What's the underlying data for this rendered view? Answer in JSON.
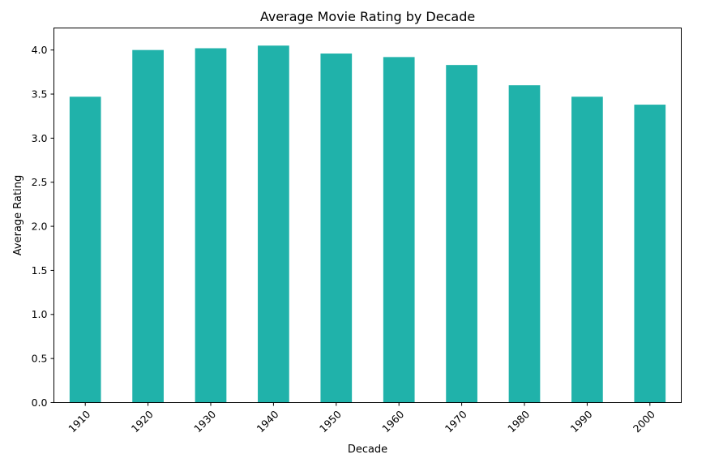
{
  "chart_data": {
    "type": "bar",
    "title": "Average Movie Rating by Decade",
    "xlabel": "Decade",
    "ylabel": "Average Rating",
    "categories": [
      "1910",
      "1920",
      "1930",
      "1940",
      "1950",
      "1960",
      "1970",
      "1980",
      "1990",
      "2000"
    ],
    "values": [
      3.47,
      4.0,
      4.02,
      4.05,
      3.96,
      3.92,
      3.83,
      3.6,
      3.47,
      3.38
    ],
    "ylim": [
      0,
      4.25
    ],
    "yticks": [
      0.0,
      0.5,
      1.0,
      1.5,
      2.0,
      2.5,
      3.0,
      3.5,
      4.0
    ],
    "ytick_labels": [
      "0.0",
      "0.5",
      "1.0",
      "1.5",
      "2.0",
      "2.5",
      "3.0",
      "3.5",
      "4.0"
    ],
    "bar_color": "#20b2aa",
    "grid": false,
    "legend": "none"
  }
}
